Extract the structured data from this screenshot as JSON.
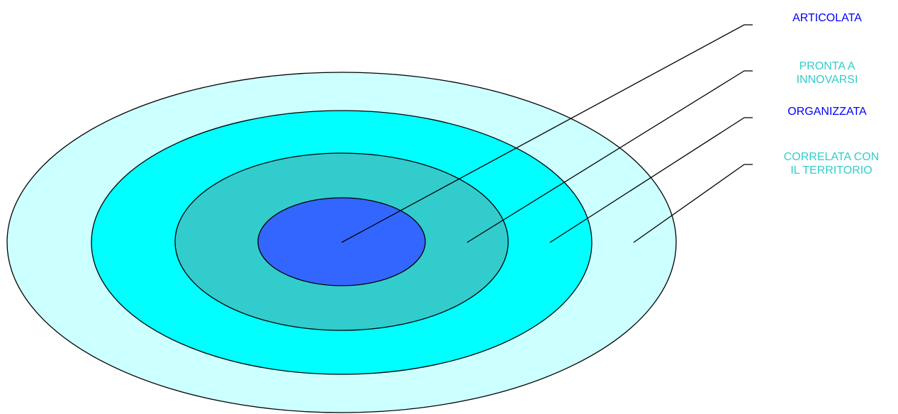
{
  "rings": [
    {
      "name": "ring-outer",
      "fill": "#ccffff"
    },
    {
      "name": "ring-second",
      "fill": "#00ffff"
    },
    {
      "name": "ring-third",
      "fill": "#33cccc"
    },
    {
      "name": "ring-core",
      "fill": "#3366ff"
    }
  ],
  "labels": [
    {
      "lines": [
        "ARTICOLATA"
      ],
      "color": "#0000ff"
    },
    {
      "lines": [
        "PRONTA A",
        "INNOVARSI"
      ],
      "color": "#33cccc"
    },
    {
      "lines": [
        "ORGANIZZATA"
      ],
      "color": "#0000ff"
    },
    {
      "lines": [
        "CORRELATA CON",
        "IL TERRITORIO"
      ],
      "color": "#33cccc"
    }
  ]
}
